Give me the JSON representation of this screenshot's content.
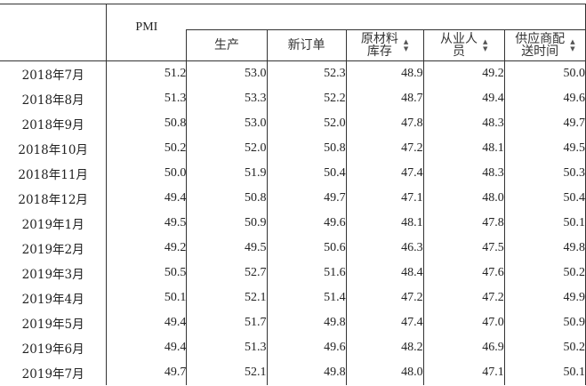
{
  "table": {
    "pmi_label": "PMI",
    "subheaders": [
      {
        "lines": [
          "生产"
        ],
        "sortable": false
      },
      {
        "lines": [
          "新订单"
        ],
        "sortable": false
      },
      {
        "lines": [
          "原材料",
          "库存"
        ],
        "sortable": true
      },
      {
        "lines": [
          "从业人",
          "员"
        ],
        "sortable": true
      },
      {
        "lines": [
          "供应商配",
          "送时间"
        ],
        "sortable": true
      }
    ],
    "rows": [
      {
        "month": "2018年7月",
        "vals": [
          "51.2",
          "53.0",
          "52.3",
          "48.9",
          "49.2",
          "50.0"
        ]
      },
      {
        "month": "2018年8月",
        "vals": [
          "51.3",
          "53.3",
          "52.2",
          "48.7",
          "49.4",
          "49.6"
        ]
      },
      {
        "month": "2018年9月",
        "vals": [
          "50.8",
          "53.0",
          "52.0",
          "47.8",
          "48.3",
          "49.7"
        ]
      },
      {
        "month": "2018年10月",
        "vals": [
          "50.2",
          "52.0",
          "50.8",
          "47.2",
          "48.1",
          "49.5"
        ]
      },
      {
        "month": "2018年11月",
        "vals": [
          "50.0",
          "51.9",
          "50.4",
          "47.4",
          "48.3",
          "50.3"
        ]
      },
      {
        "month": "2018年12月",
        "vals": [
          "49.4",
          "50.8",
          "49.7",
          "47.1",
          "48.0",
          "50.4"
        ]
      },
      {
        "month": "2019年1月",
        "vals": [
          "49.5",
          "50.9",
          "49.6",
          "48.1",
          "47.8",
          "50.1"
        ]
      },
      {
        "month": "2019年2月",
        "vals": [
          "49.2",
          "49.5",
          "50.6",
          "46.3",
          "47.5",
          "49.8"
        ]
      },
      {
        "month": "2019年3月",
        "vals": [
          "50.5",
          "52.7",
          "51.6",
          "48.4",
          "47.6",
          "50.2"
        ]
      },
      {
        "month": "2019年4月",
        "vals": [
          "50.1",
          "52.1",
          "51.4",
          "47.2",
          "47.2",
          "49.9"
        ]
      },
      {
        "month": "2019年5月",
        "vals": [
          "49.4",
          "51.7",
          "49.8",
          "47.4",
          "47.0",
          "50.9"
        ]
      },
      {
        "month": "2019年6月",
        "vals": [
          "49.4",
          "51.3",
          "49.6",
          "48.2",
          "46.9",
          "50.2"
        ]
      },
      {
        "month": "2019年7月",
        "vals": [
          "49.7",
          "52.1",
          "49.8",
          "48.0",
          "47.1",
          "50.1"
        ]
      }
    ]
  },
  "icons": {
    "sort": "sort-updown-icon",
    "up": "▲",
    "down": "▼"
  }
}
